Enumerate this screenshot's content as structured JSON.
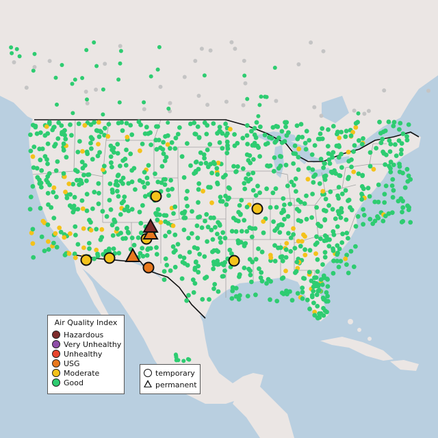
{
  "legend": {
    "title": "Air Quality Index",
    "categories": [
      {
        "label": "Hazardous",
        "color": "#7e2b2b"
      },
      {
        "label": "Very Unhealthy",
        "color": "#8f4fa8"
      },
      {
        "label": "Unhealthy",
        "color": "#e8452e"
      },
      {
        "label": "USG",
        "color": "#e8781e"
      },
      {
        "label": "Moderate",
        "color": "#f4c21b"
      },
      {
        "label": "Good",
        "color": "#2ecc71"
      }
    ]
  },
  "type_legend": {
    "temporary_label": "temporary",
    "permanent_label": "permanent"
  },
  "map_colors": {
    "ocean": "#b9cfe0",
    "land": "#ebe6e4",
    "state_borders": "#a2a2a2",
    "country_border": "#111111",
    "offshore_monitor": "#c4c4c4"
  }
}
